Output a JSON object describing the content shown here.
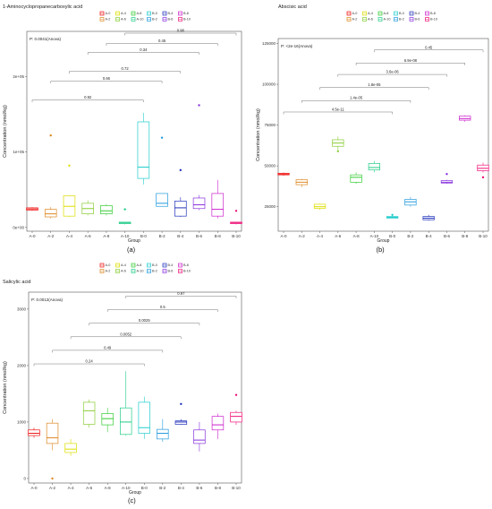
{
  "chart_data": [
    {
      "id": "a",
      "type": "box",
      "title": "1-Aminocyclopropanecarboxylic acid",
      "panel_label": "(a)",
      "xlabel": "Group",
      "ylabel": "Concentration (nmol/kg)",
      "pvalue_text": "P: 0.0041(Anova)",
      "y_tick_labels": [
        "0e+00",
        "1e+05",
        "2e+05"
      ],
      "y_tick_values": [
        0,
        100000,
        200000
      ],
      "ylim": [
        -5000,
        260000
      ],
      "categories": [
        "A-0",
        "A-2",
        "A-4",
        "A-6",
        "A-8",
        "A-10",
        "B-0",
        "B-2",
        "B-4",
        "B-6",
        "B-8",
        "B-10"
      ],
      "boxes": [
        {
          "group": "A-0",
          "q1": 23000,
          "median": 24500,
          "q3": 26000,
          "min": 22000,
          "max": 27000,
          "outliers": []
        },
        {
          "group": "A-2",
          "q1": 14000,
          "median": 18000,
          "q3": 24000,
          "min": 12000,
          "max": 27000,
          "outliers": [
            122000
          ]
        },
        {
          "group": "A-4",
          "q1": 15000,
          "median": 28000,
          "q3": 42000,
          "min": 14000,
          "max": 43000,
          "outliers": [
            82000
          ]
        },
        {
          "group": "A-6",
          "q1": 18000,
          "median": 25000,
          "q3": 32000,
          "min": 16000,
          "max": 36000,
          "outliers": []
        },
        {
          "group": "A-8",
          "q1": 18000,
          "median": 22000,
          "q3": 29000,
          "min": 16000,
          "max": 31000,
          "outliers": []
        },
        {
          "group": "A-10",
          "q1": 5000,
          "median": 6000,
          "q3": 7000,
          "min": 4000,
          "max": 7500,
          "outliers": [
            24000
          ]
        },
        {
          "group": "B-0",
          "q1": 65000,
          "median": 80000,
          "q3": 140000,
          "min": 57000,
          "max": 152000,
          "outliers": []
        },
        {
          "group": "B-2",
          "q1": 28000,
          "median": 32000,
          "q3": 45000,
          "min": 28000,
          "max": 45000,
          "outliers": [
            119000
          ]
        },
        {
          "group": "B-4",
          "q1": 15000,
          "median": 26000,
          "q3": 35000,
          "min": 14000,
          "max": 40000,
          "outliers": [
            76000
          ]
        },
        {
          "group": "B-6",
          "q1": 25000,
          "median": 30000,
          "q3": 39000,
          "min": 23000,
          "max": 43000,
          "outliers": [
            162000
          ]
        },
        {
          "group": "B-8",
          "q1": 15000,
          "median": 24000,
          "q3": 45000,
          "min": 12000,
          "max": 63000,
          "outliers": []
        },
        {
          "group": "B-10",
          "q1": 5000,
          "median": 6000,
          "q3": 7000,
          "min": 4000,
          "max": 7500,
          "outliers": [
            22000
          ]
        }
      ],
      "comparisons": [
        {
          "from": "A-0",
          "to": "B-0",
          "p": "0.92",
          "y": 169000
        },
        {
          "from": "A-2",
          "to": "B-2",
          "p": "0.66",
          "y": 194000
        },
        {
          "from": "A-4",
          "to": "B-4",
          "p": "0.72",
          "y": 207000
        },
        {
          "from": "A-6",
          "to": "B-6",
          "p": "0.34",
          "y": 232000
        },
        {
          "from": "A-8",
          "to": "B-8",
          "p": "0.45",
          "y": 244000
        },
        {
          "from": "A-10",
          "to": "B-10",
          "p": "0.98",
          "y": 269000
        }
      ]
    },
    {
      "id": "b",
      "type": "box",
      "title": "Abscisic acid",
      "panel_label": "(b)",
      "xlabel": "Group",
      "ylabel": "Concentration (nmol/kg)",
      "pvalue_text": "P: <2e-16(Anova)",
      "y_tick_labels": [
        "25000",
        "50000",
        "75000",
        "100000",
        "125000"
      ],
      "y_tick_values": [
        25000,
        50000,
        75000,
        100000,
        125000
      ],
      "ylim": [
        10000,
        128000
      ],
      "categories": [
        "A-0",
        "A-2",
        "A-4",
        "A-6",
        "A-8",
        "A-10",
        "B-0",
        "B-2",
        "B-4",
        "B-6",
        "B-8",
        "B-10"
      ],
      "boxes": [
        {
          "group": "A-0",
          "q1": 44500,
          "median": 45000,
          "q3": 45500,
          "min": 44000,
          "max": 46000,
          "outliers": []
        },
        {
          "group": "A-2",
          "q1": 38500,
          "median": 40000,
          "q3": 41500,
          "min": 37000,
          "max": 42000,
          "outliers": []
        },
        {
          "group": "A-4",
          "q1": 24000,
          "median": 25000,
          "q3": 26500,
          "min": 23000,
          "max": 27000,
          "outliers": []
        },
        {
          "group": "A-6",
          "q1": 62000,
          "median": 64000,
          "q3": 66000,
          "min": 60000,
          "max": 68000,
          "outliers": [
            59000
          ]
        },
        {
          "group": "A-8",
          "q1": 40000,
          "median": 43000,
          "q3": 44500,
          "min": 39000,
          "max": 46000,
          "outliers": []
        },
        {
          "group": "A-10",
          "q1": 47500,
          "median": 49000,
          "q3": 51500,
          "min": 46000,
          "max": 53000,
          "outliers": []
        },
        {
          "group": "B-0",
          "q1": 18000,
          "median": 18500,
          "q3": 19000,
          "min": 18000,
          "max": 19500,
          "outliers": [
            20000
          ]
        },
        {
          "group": "B-2",
          "q1": 26000,
          "median": 28000,
          "q3": 29500,
          "min": 25000,
          "max": 31000,
          "outliers": []
        },
        {
          "group": "B-4",
          "q1": 17000,
          "median": 18000,
          "q3": 19000,
          "min": 16500,
          "max": 20000,
          "outliers": []
        },
        {
          "group": "B-6",
          "q1": 39500,
          "median": 40000,
          "q3": 41000,
          "min": 39000,
          "max": 41500,
          "outliers": [
            45000
          ]
        },
        {
          "group": "B-8",
          "q1": 78000,
          "median": 79000,
          "q3": 80500,
          "min": 77000,
          "max": 81000,
          "outliers": []
        },
        {
          "group": "B-10",
          "q1": 47000,
          "median": 48500,
          "q3": 50500,
          "min": 46000,
          "max": 52000,
          "outliers": [
            43000
          ]
        }
      ],
      "comparisons": [
        {
          "from": "A-0",
          "to": "B-0",
          "p": "4.5e-11",
          "y": 83000
        },
        {
          "from": "A-2",
          "to": "B-2",
          "p": "1.4e-05",
          "y": 90000
        },
        {
          "from": "A-4",
          "to": "B-4",
          "p": "1.8e-05",
          "y": 98000
        },
        {
          "from": "A-6",
          "to": "B-6",
          "p": "3.6e-06",
          "y": 106000
        },
        {
          "from": "A-8",
          "to": "B-8",
          "p": "6.9e-08",
          "y": 113000
        },
        {
          "from": "A-10",
          "to": "B-10",
          "p": "0.45",
          "y": 121000
        }
      ]
    },
    {
      "id": "c",
      "type": "box",
      "title": "Salicylic acid",
      "panel_label": "(c)",
      "xlabel": "Group",
      "ylabel": "Concentration (nmol/kg)",
      "pvalue_text": "P: 0.0012(Anova)",
      "y_tick_labels": [
        "0",
        "1000",
        "2000",
        "3000"
      ],
      "y_tick_values": [
        0,
        1000,
        2000,
        3000
      ],
      "ylim": [
        -80,
        3300
      ],
      "categories": [
        "A-0",
        "A-2",
        "A-4",
        "A-6",
        "A-8",
        "A-10",
        "B-0",
        "B-2",
        "B-4",
        "B-6",
        "B-8",
        "B-10"
      ],
      "boxes": [
        {
          "group": "A-0",
          "q1": 760,
          "median": 800,
          "q3": 860,
          "min": 720,
          "max": 900,
          "outliers": []
        },
        {
          "group": "A-2",
          "q1": 620,
          "median": 720,
          "q3": 980,
          "min": 500,
          "max": 1050,
          "outliers": [
            0
          ]
        },
        {
          "group": "A-4",
          "q1": 460,
          "median": 520,
          "q3": 620,
          "min": 400,
          "max": 700,
          "outliers": []
        },
        {
          "group": "A-6",
          "q1": 960,
          "median": 1200,
          "q3": 1350,
          "min": 900,
          "max": 1400,
          "outliers": []
        },
        {
          "group": "A-8",
          "q1": 950,
          "median": 1060,
          "q3": 1150,
          "min": 820,
          "max": 1250,
          "outliers": []
        },
        {
          "group": "A-10",
          "q1": 780,
          "median": 1000,
          "q3": 1250,
          "min": 760,
          "max": 1900,
          "outliers": []
        },
        {
          "group": "B-0",
          "q1": 800,
          "median": 900,
          "q3": 1350,
          "min": 700,
          "max": 1450,
          "outliers": []
        },
        {
          "group": "B-2",
          "q1": 700,
          "median": 800,
          "q3": 870,
          "min": 650,
          "max": 1050,
          "outliers": []
        },
        {
          "group": "B-4",
          "q1": 960,
          "median": 1000,
          "q3": 1020,
          "min": 950,
          "max": 1050,
          "outliers": [
            1320
          ]
        },
        {
          "group": "B-6",
          "q1": 620,
          "median": 680,
          "q3": 860,
          "min": 480,
          "max": 1000,
          "outliers": []
        },
        {
          "group": "B-8",
          "q1": 860,
          "median": 950,
          "q3": 1100,
          "min": 700,
          "max": 1150,
          "outliers": []
        },
        {
          "group": "B-10",
          "q1": 1000,
          "median": 1100,
          "q3": 1170,
          "min": 950,
          "max": 1200,
          "outliers": [
            1480
          ]
        }
      ],
      "comparisons": [
        {
          "from": "A-0",
          "to": "B-0",
          "p": "0.24",
          "y": 2030
        },
        {
          "from": "A-2",
          "to": "B-2",
          "p": "0.49",
          "y": 2270
        },
        {
          "from": "A-4",
          "to": "B-4",
          "p": "0.0052",
          "y": 2510
        },
        {
          "from": "A-6",
          "to": "B-6",
          "p": "0.0025",
          "y": 2750
        },
        {
          "from": "A-8",
          "to": "B-8",
          "p": "0.5",
          "y": 2990
        },
        {
          "from": "A-10",
          "to": "B-10",
          "p": "0.97",
          "y": 3230
        }
      ]
    }
  ],
  "group_colors": {
    "A-0": "#ee1111",
    "A-2": "#dd8822",
    "A-4": "#dddd00",
    "A-6": "#88cc33",
    "A-8": "#33cc33",
    "A-10": "#22cc88",
    "B-0": "#22cccc",
    "B-2": "#2299dd",
    "B-4": "#2233bb",
    "B-6": "#8833dd",
    "B-8": "#cc22cc",
    "B-10": "#ee1177"
  }
}
